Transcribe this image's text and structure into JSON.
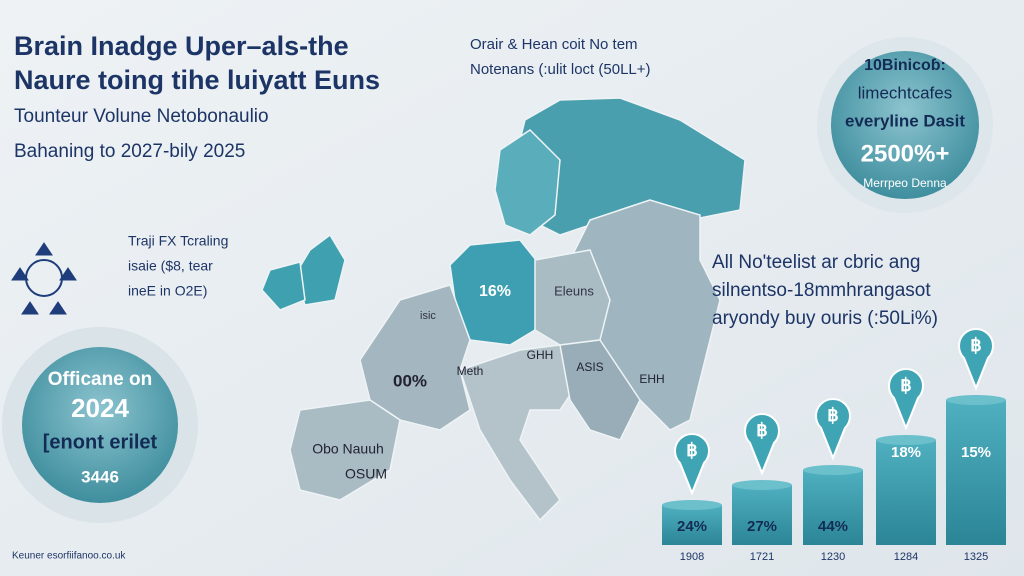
{
  "header": {
    "title_lines": [
      "Brain Inadge Uper–als-the",
      "Naure toing tihe luiyatt Euns"
    ],
    "subtitle": "Tounteur Volune Netobonaulio",
    "date_line": "Bahaning to 2027-bily 2025"
  },
  "top_note": [
    "Orair & Hean coit No tem",
    "Notenans (:ulit loct (50LL+)"
  ],
  "circle_top_right": [
    "10Binicoɓ:",
    "limechtcafes",
    "everyline Dasit",
    "2500%+",
    "Merrpeo Denna"
  ],
  "left_note": [
    "Traji FX Tcraling",
    "isaie ($8, tear",
    "ineE in O2E)"
  ],
  "circle_left": [
    "Officane on",
    "2024",
    "[enont erilet",
    "3446"
  ],
  "map_labels": [
    "16%",
    "Eleuns",
    "isic",
    "00%",
    "Meth",
    "GHH",
    "ASIS",
    "EHH",
    "Obo Nauuh",
    "OSUM"
  ],
  "right_note": [
    "All No'teelist ar cbric ang",
    "silnentso-18mmhrangasot",
    "aryondy buy ouris (:50Li%)"
  ],
  "bars": [
    {
      "label": "24%",
      "year": "1908"
    },
    {
      "label": "27%",
      "year": "1721"
    },
    {
      "label": "44%",
      "year": "1230"
    },
    {
      "label": "18%",
      "year": "1284"
    },
    {
      "label": "15%",
      "year": "1325"
    }
  ],
  "footer": "Keuner esorfiifanoo.co.uk"
}
